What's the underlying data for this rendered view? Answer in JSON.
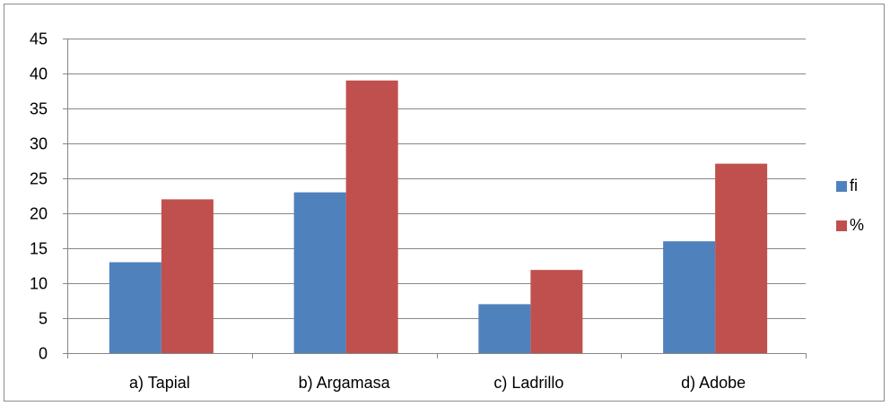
{
  "chart_data": {
    "type": "bar",
    "categories": [
      "a) Tapial",
      "b) Argamasa",
      "c) Ladrillo",
      "d)  Adobe"
    ],
    "series": [
      {
        "name": "fi",
        "values": [
          13,
          23,
          7,
          16
        ],
        "color": "#4f81bd"
      },
      {
        "name": "%",
        "values": [
          22,
          39,
          11.9,
          27.1
        ],
        "color": "#c0504d"
      }
    ],
    "ylim": [
      0,
      45
    ],
    "yticks": [
      0,
      5,
      10,
      15,
      20,
      25,
      30,
      35,
      40,
      45
    ],
    "grid": true,
    "legend": "right",
    "title": "",
    "xlabel": "",
    "ylabel": ""
  }
}
